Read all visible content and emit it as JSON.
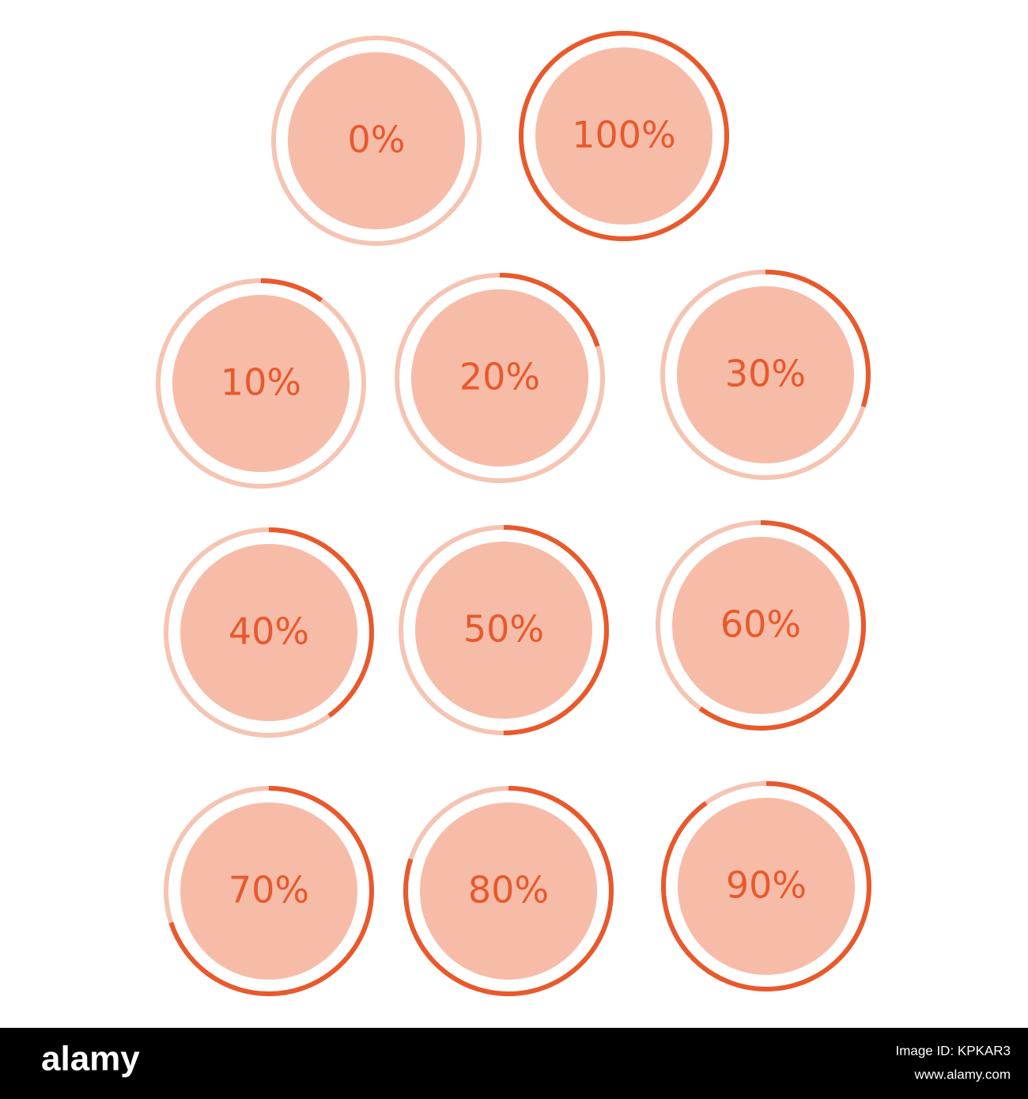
{
  "gauges": [
    {
      "label": "0%",
      "value": 0
    },
    {
      "label": "100%",
      "value": 100
    },
    {
      "label": "10%",
      "value": 10
    },
    {
      "label": "20%",
      "value": 20
    },
    {
      "label": "30%",
      "value": 30
    },
    {
      "label": "40%",
      "value": 40
    },
    {
      "label": "50%",
      "value": 50
    },
    {
      "label": "60%",
      "value": 60
    },
    {
      "label": "70%",
      "value": 70
    },
    {
      "label": "80%",
      "value": 80
    },
    {
      "label": "90%",
      "value": 90
    }
  ],
  "footer": {
    "brand": "alamy",
    "image_id": "Image ID: KPKAR3",
    "url": "www.alamy.com"
  }
}
